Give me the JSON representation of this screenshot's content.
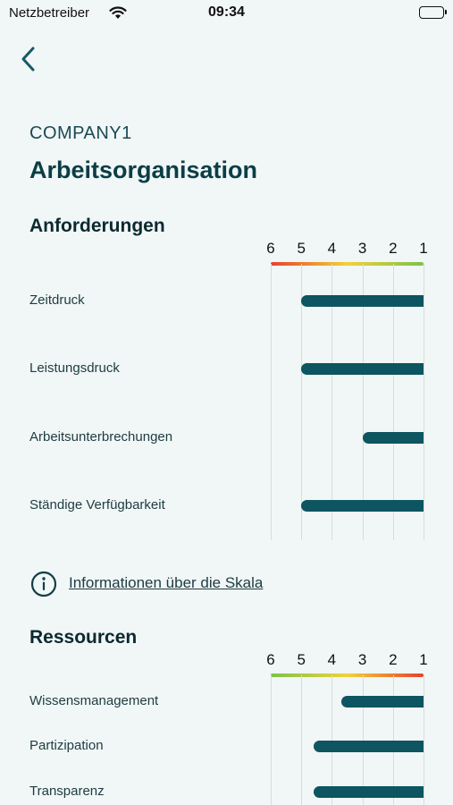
{
  "status_bar": {
    "carrier": "Netzbetreiber",
    "time": "09:34"
  },
  "header": {
    "company": "COMPANY1",
    "title": "Arbeitsorganisation"
  },
  "sections": [
    {
      "title": "Anforderungen",
      "scale": [
        "6",
        "5",
        "4",
        "3",
        "2",
        "1"
      ],
      "gradient": "red-to-green",
      "items": [
        {
          "label": "Zeitdruck",
          "value": 5
        },
        {
          "label": "Leistungsdruck",
          "value": 5
        },
        {
          "label": "Arbeitsunterbrechungen",
          "value": 3
        },
        {
          "label": "Ständige Verfügbarkeit",
          "value": 5
        }
      ]
    },
    {
      "title": "Ressourcen",
      "scale": [
        "6",
        "5",
        "4",
        "3",
        "2",
        "1"
      ],
      "gradient": "green-to-red",
      "items": [
        {
          "label": "Wissensmanagement",
          "value": 3.7
        },
        {
          "label": "Partizipation",
          "value": 4.6
        },
        {
          "label": "Transparenz",
          "value": 4.6
        }
      ]
    }
  ],
  "info": {
    "link_label": "Informationen über die Skala"
  },
  "colors": {
    "bar": "#0d5560",
    "red": "#e8402c",
    "yellow": "#f0d23a",
    "green": "#7cc24a"
  }
}
